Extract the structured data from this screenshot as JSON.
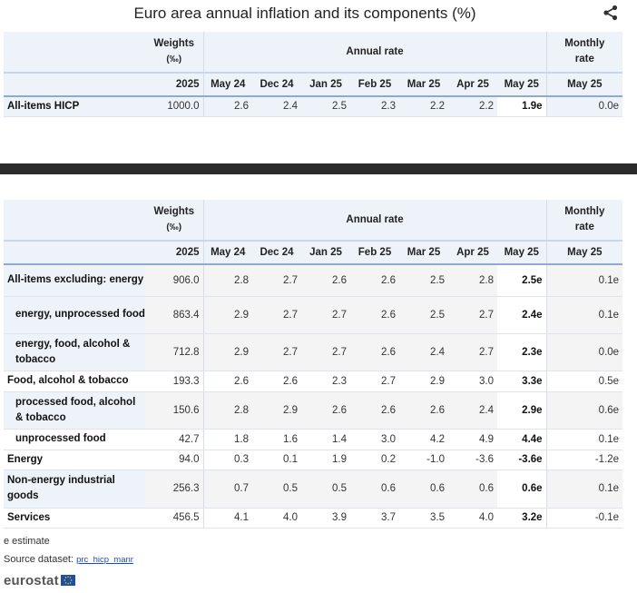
{
  "title": "Euro area annual inflation and its components (%)",
  "header": {
    "weights": "Weights",
    "weights_unit": "(‰)",
    "annual_rate": "Annual rate",
    "monthly": "Monthly",
    "monthly_rate": "rate",
    "year": "2025",
    "periods": [
      "May 24",
      "Dec 24",
      "Jan 25",
      "Feb 25",
      "Mar 25",
      "Apr 25",
      "May 25"
    ],
    "monthly_period": "May 25"
  },
  "table1": {
    "rows": [
      {
        "label": "All-items HICP",
        "weight": "1000.0",
        "values": [
          "2.6",
          "2.4",
          "2.5",
          "2.3",
          "2.2",
          "2.2",
          "1.9e"
        ],
        "monthly": "0.0e"
      }
    ]
  },
  "table2": {
    "rows": [
      {
        "label": "All-items excluding: energy",
        "weight": "906.0",
        "values": [
          "2.8",
          "2.7",
          "2.6",
          "2.6",
          "2.5",
          "2.8",
          "2.5e"
        ],
        "monthly": "0.1e"
      },
      {
        "label": "energy, unprocessed food",
        "weight": "863.4",
        "values": [
          "2.9",
          "2.7",
          "2.7",
          "2.6",
          "2.5",
          "2.7",
          "2.4e"
        ],
        "monthly": "0.1e"
      },
      {
        "label": "energy, food, alcohol & tobacco",
        "weight": "712.8",
        "values": [
          "2.9",
          "2.7",
          "2.7",
          "2.6",
          "2.4",
          "2.7",
          "2.3e"
        ],
        "monthly": "0.0e"
      },
      {
        "label": "Food, alcohol & tobacco",
        "weight": "193.3",
        "values": [
          "2.6",
          "2.6",
          "2.3",
          "2.7",
          "2.9",
          "3.0",
          "3.3e"
        ],
        "monthly": "0.5e"
      },
      {
        "label": "processed food, alcohol & tobacco",
        "weight": "150.6",
        "values": [
          "2.8",
          "2.9",
          "2.6",
          "2.6",
          "2.6",
          "2.4",
          "2.9e"
        ],
        "monthly": "0.6e"
      },
      {
        "label": "unprocessed food",
        "weight": "42.7",
        "values": [
          "1.8",
          "1.6",
          "1.4",
          "3.0",
          "4.2",
          "4.9",
          "4.4e"
        ],
        "monthly": "0.1e"
      },
      {
        "label": "Energy",
        "weight": "94.0",
        "values": [
          "0.3",
          "0.1",
          "1.9",
          "0.2",
          "-1.0",
          "-3.6",
          "-3.6e"
        ],
        "monthly": "-1.2e"
      },
      {
        "label": "Non-energy industrial goods",
        "weight": "256.3",
        "values": [
          "0.7",
          "0.5",
          "0.5",
          "0.6",
          "0.6",
          "0.6",
          "0.6e"
        ],
        "monthly": "0.1e"
      },
      {
        "label": "Services",
        "weight": "456.5",
        "values": [
          "4.1",
          "4.0",
          "3.9",
          "3.7",
          "3.5",
          "4.0",
          "3.2e"
        ],
        "monthly": "-0.1e"
      }
    ]
  },
  "footer": {
    "estimate_note": "e estimate",
    "source_label": "Source dataset: ",
    "source_link": "prc_hicp_manr",
    "logo_text": "eurostat"
  },
  "colors": {
    "header_bg": "#eef3fa",
    "accent_line": "#8fa9d3",
    "link": "#1d50a2",
    "dark_bar": "#2b2b2b"
  },
  "icons": {
    "share": "share-icon",
    "flag": "eu-flag-icon"
  }
}
